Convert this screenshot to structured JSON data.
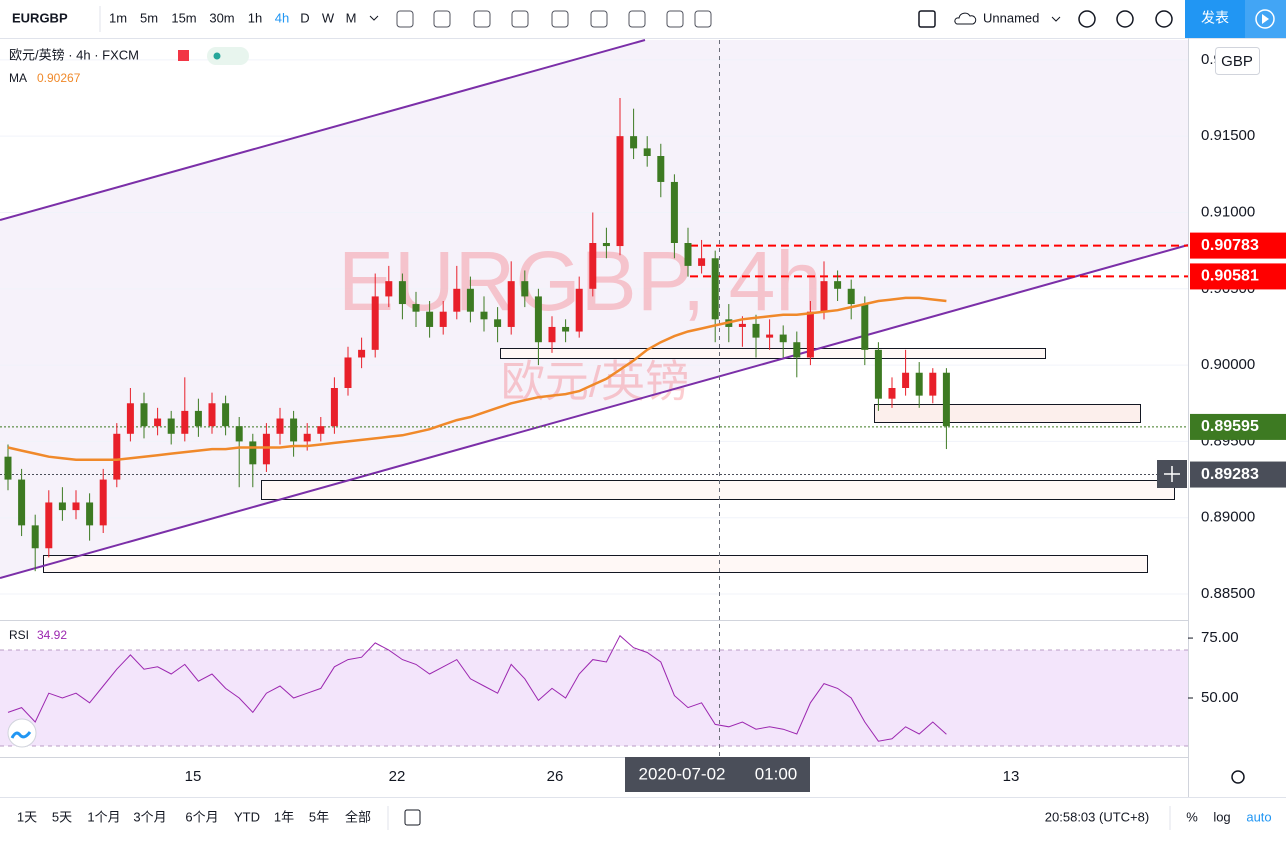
{
  "toolbar": {
    "symbol": "EURGBP",
    "intervals": [
      "1m",
      "5m",
      "15m",
      "30m",
      "1h",
      "4h",
      "D",
      "W",
      "M"
    ],
    "layout_name": "Unnamed",
    "publish": "发表"
  },
  "legend": {
    "title": "欧元/英镑 · 4h · FXCM",
    "ma_label": "MA",
    "ma_value": 0.90267
  },
  "watermark": {
    "symbol": "EURGBP, 4h",
    "name": "欧元/英镑"
  },
  "currency": "GBP",
  "chart": {
    "type": "candlestick",
    "up_color": "#e8202a",
    "down_color": "#3d7a22",
    "ylim": [
      0.8833,
      0.9213
    ],
    "yticks": [
      {
        "value": 0.885,
        "label": "0.88500"
      },
      {
        "value": 0.89,
        "label": "0.89000"
      },
      {
        "value": 0.895,
        "label": "0.89500"
      },
      {
        "value": 0.9,
        "label": "0.90000"
      },
      {
        "value": 0.905,
        "label": "0.90500"
      },
      {
        "value": 0.91,
        "label": "0.91000"
      },
      {
        "value": 0.915,
        "label": "0.91500"
      },
      {
        "value": 0.92,
        "label": "0.92000"
      }
    ],
    "candles": [
      [
        0.894,
        0.8948,
        0.8918,
        0.8925
      ],
      [
        0.8925,
        0.8932,
        0.8888,
        0.8895
      ],
      [
        0.8895,
        0.8902,
        0.8865,
        0.888
      ],
      [
        0.888,
        0.8918,
        0.8874,
        0.891
      ],
      [
        0.891,
        0.892,
        0.8898,
        0.8905
      ],
      [
        0.8905,
        0.8918,
        0.8899,
        0.891
      ],
      [
        0.891,
        0.8916,
        0.8885,
        0.8895
      ],
      [
        0.8895,
        0.8932,
        0.889,
        0.8925
      ],
      [
        0.8925,
        0.8962,
        0.892,
        0.8955
      ],
      [
        0.8955,
        0.8985,
        0.895,
        0.8975
      ],
      [
        0.8975,
        0.8982,
        0.8952,
        0.896
      ],
      [
        0.896,
        0.8972,
        0.8954,
        0.8965
      ],
      [
        0.8965,
        0.897,
        0.8948,
        0.8955
      ],
      [
        0.8955,
        0.8992,
        0.895,
        0.897
      ],
      [
        0.897,
        0.8978,
        0.8953,
        0.896
      ],
      [
        0.896,
        0.8982,
        0.8955,
        0.8975
      ],
      [
        0.8975,
        0.898,
        0.8954,
        0.896
      ],
      [
        0.896,
        0.8966,
        0.892,
        0.895
      ],
      [
        0.895,
        0.8955,
        0.892,
        0.8935
      ],
      [
        0.8935,
        0.8962,
        0.893,
        0.8955
      ],
      [
        0.8955,
        0.8972,
        0.8948,
        0.8965
      ],
      [
        0.8965,
        0.897,
        0.894,
        0.895
      ],
      [
        0.895,
        0.8962,
        0.8944,
        0.8955
      ],
      [
        0.8955,
        0.8966,
        0.895,
        0.896
      ],
      [
        0.896,
        0.8992,
        0.8955,
        0.8985
      ],
      [
        0.8985,
        0.9012,
        0.898,
        0.9005
      ],
      [
        0.9005,
        0.9018,
        0.8998,
        0.901
      ],
      [
        0.901,
        0.906,
        0.9005,
        0.9045
      ],
      [
        0.9045,
        0.9065,
        0.9038,
        0.9055
      ],
      [
        0.9055,
        0.906,
        0.903,
        0.904
      ],
      [
        0.904,
        0.9048,
        0.9025,
        0.9035
      ],
      [
        0.9035,
        0.9042,
        0.9018,
        0.9025
      ],
      [
        0.9025,
        0.9042,
        0.902,
        0.9035
      ],
      [
        0.9035,
        0.9065,
        0.903,
        0.905
      ],
      [
        0.905,
        0.9058,
        0.9028,
        0.9035
      ],
      [
        0.9035,
        0.9045,
        0.9022,
        0.903
      ],
      [
        0.903,
        0.9038,
        0.9015,
        0.9025
      ],
      [
        0.9025,
        0.9068,
        0.902,
        0.9055
      ],
      [
        0.9055,
        0.9062,
        0.9038,
        0.9045
      ],
      [
        0.9045,
        0.905,
        0.9,
        0.9015
      ],
      [
        0.9015,
        0.9032,
        0.9008,
        0.9025
      ],
      [
        0.9025,
        0.903,
        0.9015,
        0.9022
      ],
      [
        0.9022,
        0.9058,
        0.9018,
        0.905
      ],
      [
        0.905,
        0.91,
        0.9045,
        0.908
      ],
      [
        0.908,
        0.909,
        0.907,
        0.9078
      ],
      [
        0.9078,
        0.9175,
        0.9072,
        0.915
      ],
      [
        0.915,
        0.9168,
        0.9135,
        0.9142
      ],
      [
        0.9142,
        0.915,
        0.913,
        0.9137
      ],
      [
        0.9137,
        0.9145,
        0.911,
        0.912
      ],
      [
        0.912,
        0.9125,
        0.907,
        0.908
      ],
      [
        0.908,
        0.909,
        0.9058,
        0.9065
      ],
      [
        0.9065,
        0.9082,
        0.906,
        0.907
      ],
      [
        0.907,
        0.9075,
        0.9015,
        0.903
      ],
      [
        0.903,
        0.904,
        0.9015,
        0.9025
      ],
      [
        0.9025,
        0.9032,
        0.9012,
        0.9027
      ],
      [
        0.9027,
        0.9033,
        0.9005,
        0.9018
      ],
      [
        0.9018,
        0.903,
        0.901,
        0.902
      ],
      [
        0.902,
        0.9026,
        0.9005,
        0.9015
      ],
      [
        0.9015,
        0.9022,
        0.8992,
        0.9005
      ],
      [
        0.9005,
        0.9042,
        0.9,
        0.9035
      ],
      [
        0.9035,
        0.9068,
        0.903,
        0.9055
      ],
      [
        0.9055,
        0.9062,
        0.9042,
        0.905
      ],
      [
        0.905,
        0.9056,
        0.903,
        0.904
      ],
      [
        0.904,
        0.9045,
        0.9,
        0.901
      ],
      [
        0.901,
        0.9015,
        0.897,
        0.8978
      ],
      [
        0.8978,
        0.8992,
        0.8972,
        0.8985
      ],
      [
        0.8985,
        0.901,
        0.898,
        0.8995
      ],
      [
        0.8995,
        0.9002,
        0.8972,
        0.898
      ],
      [
        0.898,
        0.8998,
        0.8975,
        0.8995
      ],
      [
        0.8995,
        0.8998,
        0.8945,
        0.896
      ]
    ],
    "ma": {
      "color": "#f0892a",
      "values": [
        0.8946,
        0.8944,
        0.8942,
        0.894,
        0.8939,
        0.8938,
        0.8938,
        0.8938,
        0.8938,
        0.8939,
        0.894,
        0.8941,
        0.8942,
        0.8943,
        0.8944,
        0.8945,
        0.8945,
        0.8946,
        0.8946,
        0.8946,
        0.8946,
        0.8947,
        0.8947,
        0.8948,
        0.8949,
        0.895,
        0.8951,
        0.8952,
        0.8953,
        0.8954,
        0.8956,
        0.8958,
        0.8961,
        0.8964,
        0.8966,
        0.8969,
        0.8972,
        0.8975,
        0.8977,
        0.8979,
        0.898,
        0.8981,
        0.8983,
        0.8987,
        0.8991,
        0.8997,
        0.9003,
        0.901,
        0.9015,
        0.9019,
        0.9022,
        0.9024,
        0.9026,
        0.9028,
        0.903,
        0.9031,
        0.9032,
        0.9033,
        0.9033,
        0.9034,
        0.9035,
        0.9036,
        0.9038,
        0.904,
        0.9042,
        0.9043,
        0.9044,
        0.9044,
        0.9043,
        0.9042
      ]
    },
    "price_lines": [
      {
        "price": 0.90783,
        "color": "#ff0000",
        "dashed": true
      },
      {
        "price": 0.90581,
        "color": "#ff0000",
        "dashed": true
      },
      {
        "price": 0.89595,
        "color": "#3d7a22",
        "dashed": false
      },
      {
        "price": 0.89283,
        "color": "#4a4e59",
        "dashed": false
      }
    ]
  },
  "rsi": {
    "label": "RSI",
    "color": "#9c27b0",
    "ylim": [
      25.4,
      81.7
    ],
    "band": [
      30,
      70
    ],
    "yticks": [
      {
        "value": 75,
        "label": "75.00"
      },
      {
        "value": 50,
        "label": "50.00"
      }
    ],
    "values": [
      44,
      46,
      40,
      52,
      50,
      52,
      48,
      55,
      62,
      68,
      62,
      63,
      60,
      64,
      57,
      60,
      54,
      50,
      44,
      52,
      55,
      50,
      52,
      54,
      63,
      66,
      67,
      73,
      70,
      66,
      64,
      60,
      63,
      66,
      58,
      55,
      52,
      64,
      58,
      49,
      54,
      50,
      60,
      66,
      65,
      76,
      71,
      69,
      65,
      51,
      46,
      48,
      39,
      38,
      40,
      37,
      38,
      37,
      35,
      48,
      56,
      54,
      50,
      40,
      32,
      33,
      38,
      35,
      40,
      34.92
    ]
  },
  "time_axis": {
    "labels": [
      "15",
      "22",
      "26",
      "13"
    ],
    "cursor_date": "2020-07-02",
    "cursor_time": "01:00"
  },
  "bottom_bar": {
    "ranges": [
      "1天",
      "5天",
      "1个月",
      "3个月",
      "6个月",
      "YTD",
      "1年",
      "5年",
      "全部"
    ],
    "clock": "20:58:03 (UTC+8)",
    "percent": "%",
    "log": "log",
    "auto": "auto"
  }
}
